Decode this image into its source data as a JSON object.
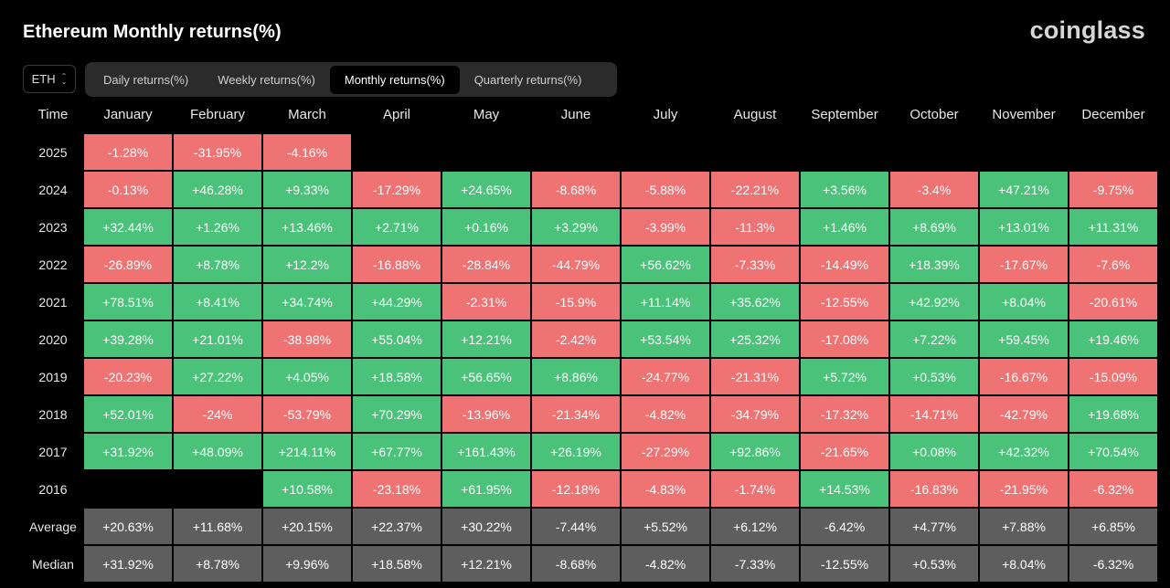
{
  "header": {
    "title": "Ethereum Monthly returns(%)",
    "logo": "coinglass"
  },
  "coin_select": {
    "value": "ETH",
    "icon": "updown-chevron-icon"
  },
  "tabs": [
    {
      "label": "Daily returns(%)",
      "active": false
    },
    {
      "label": "Weekly returns(%)",
      "active": false
    },
    {
      "label": "Monthly returns(%)",
      "active": true
    },
    {
      "label": "Quarterly returns(%)",
      "active": false
    }
  ],
  "colors": {
    "positive": "#4bc27a",
    "negative": "#f07374",
    "stat": "#5e5e5e"
  },
  "table": {
    "time_header": "Time",
    "months": [
      "January",
      "February",
      "March",
      "April",
      "May",
      "June",
      "July",
      "August",
      "September",
      "October",
      "November",
      "December"
    ],
    "rows": [
      {
        "year": "2025",
        "values": [
          "-1.28%",
          "-31.95%",
          "-4.16%",
          "",
          "",
          "",
          "",
          "",
          "",
          "",
          "",
          ""
        ]
      },
      {
        "year": "2024",
        "values": [
          "-0.13%",
          "+46.28%",
          "+9.33%",
          "-17.29%",
          "+24.65%",
          "-8.68%",
          "-5.88%",
          "-22.21%",
          "+3.56%",
          "-3.4%",
          "+47.21%",
          "-9.75%"
        ]
      },
      {
        "year": "2023",
        "values": [
          "+32.44%",
          "+1.26%",
          "+13.46%",
          "+2.71%",
          "+0.16%",
          "+3.29%",
          "-3.99%",
          "-11.3%",
          "+1.46%",
          "+8.69%",
          "+13.01%",
          "+11.31%"
        ]
      },
      {
        "year": "2022",
        "values": [
          "-26.89%",
          "+8.78%",
          "+12.2%",
          "-16.88%",
          "-28.84%",
          "-44.79%",
          "+56.62%",
          "-7.33%",
          "-14.49%",
          "+18.39%",
          "-17.67%",
          "-7.6%"
        ]
      },
      {
        "year": "2021",
        "values": [
          "+78.51%",
          "+8.41%",
          "+34.74%",
          "+44.29%",
          "-2.31%",
          "-15.9%",
          "+11.14%",
          "+35.62%",
          "-12.55%",
          "+42.92%",
          "+8.04%",
          "-20.61%"
        ]
      },
      {
        "year": "2020",
        "values": [
          "+39.28%",
          "+21.01%",
          "-38.98%",
          "+55.04%",
          "+12.21%",
          "-2.42%",
          "+53.54%",
          "+25.32%",
          "-17.08%",
          "+7.22%",
          "+59.45%",
          "+19.46%"
        ]
      },
      {
        "year": "2019",
        "values": [
          "-20.23%",
          "+27.22%",
          "+4.05%",
          "+18.58%",
          "+56.65%",
          "+8.86%",
          "-24.77%",
          "-21.31%",
          "+5.72%",
          "+0.53%",
          "-16.67%",
          "-15.09%"
        ]
      },
      {
        "year": "2018",
        "values": [
          "+52.01%",
          "-24%",
          "-53.79%",
          "+70.29%",
          "-13.96%",
          "-21.34%",
          "-4.82%",
          "-34.79%",
          "-17.32%",
          "-14.71%",
          "-42.79%",
          "+19.68%"
        ]
      },
      {
        "year": "2017",
        "values": [
          "+31.92%",
          "+48.09%",
          "+214.11%",
          "+67.77%",
          "+161.43%",
          "+26.19%",
          "-27.29%",
          "+92.86%",
          "-21.65%",
          "+0.08%",
          "+42.32%",
          "+70.54%"
        ]
      },
      {
        "year": "2016",
        "values": [
          "",
          "",
          "+10.58%",
          "-23.18%",
          "+61.95%",
          "-12.18%",
          "-4.83%",
          "-1.74%",
          "+14.53%",
          "-16.83%",
          "-21.95%",
          "-6.32%"
        ]
      }
    ],
    "stats": [
      {
        "label": "Average",
        "values": [
          "+20.63%",
          "+11.68%",
          "+20.15%",
          "+22.37%",
          "+30.22%",
          "-7.44%",
          "+5.52%",
          "+6.12%",
          "-6.42%",
          "+4.77%",
          "+7.88%",
          "+6.85%"
        ]
      },
      {
        "label": "Median",
        "values": [
          "+31.92%",
          "+8.78%",
          "+9.96%",
          "+18.58%",
          "+12.21%",
          "-8.68%",
          "-4.82%",
          "-7.33%",
          "-12.55%",
          "+0.53%",
          "+8.04%",
          "-6.32%"
        ]
      }
    ]
  }
}
